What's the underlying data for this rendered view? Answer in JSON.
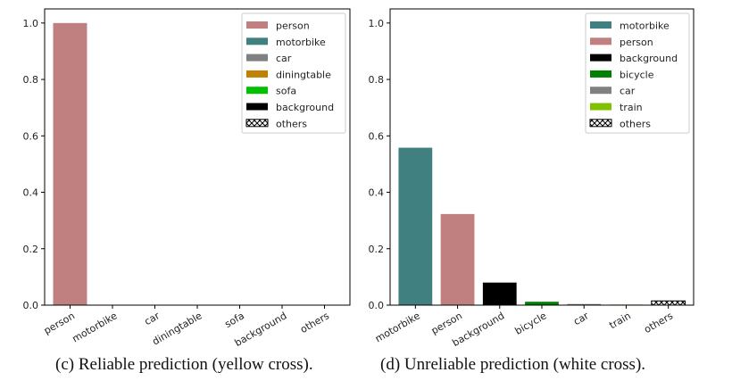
{
  "chart_data": [
    {
      "type": "bar",
      "caption": "(c) Reliable prediction (yellow cross).",
      "categories": [
        "person",
        "motorbike",
        "car",
        "diningtable",
        "sofa",
        "background",
        "others"
      ],
      "values": [
        1.0,
        0.0,
        0.0,
        0.0,
        0.0,
        0.0,
        0.0
      ],
      "colors": [
        "#c08080",
        "#408080",
        "#808080",
        "#c08000",
        "#00c000",
        "#000000",
        "hatch"
      ],
      "ylim": [
        0,
        1.05
      ],
      "yticks": [
        "0.0",
        "0.2",
        "0.4",
        "0.6",
        "0.8",
        "1.0"
      ],
      "legend": {
        "placement": "top-right",
        "entries": [
          "person",
          "motorbike",
          "car",
          "diningtable",
          "sofa",
          "background",
          "others"
        ]
      },
      "grid": false
    },
    {
      "type": "bar",
      "caption": "(d) Unreliable prediction (white cross).",
      "categories": [
        "motorbike",
        "person",
        "background",
        "bicycle",
        "car",
        "train",
        "others"
      ],
      "values": [
        0.558,
        0.323,
        0.08,
        0.012,
        0.004,
        0.002,
        0.015
      ],
      "colors": [
        "#408080",
        "#c08080",
        "#000000",
        "#008000",
        "#808080",
        "#80c000",
        "hatch"
      ],
      "ylim": [
        0,
        1.05
      ],
      "yticks": [
        "0.0",
        "0.2",
        "0.4",
        "0.6",
        "0.8",
        "1.0"
      ],
      "legend": {
        "placement": "top-right",
        "entries": [
          "motorbike",
          "person",
          "background",
          "bicycle",
          "car",
          "train",
          "others"
        ]
      },
      "grid": false
    }
  ]
}
